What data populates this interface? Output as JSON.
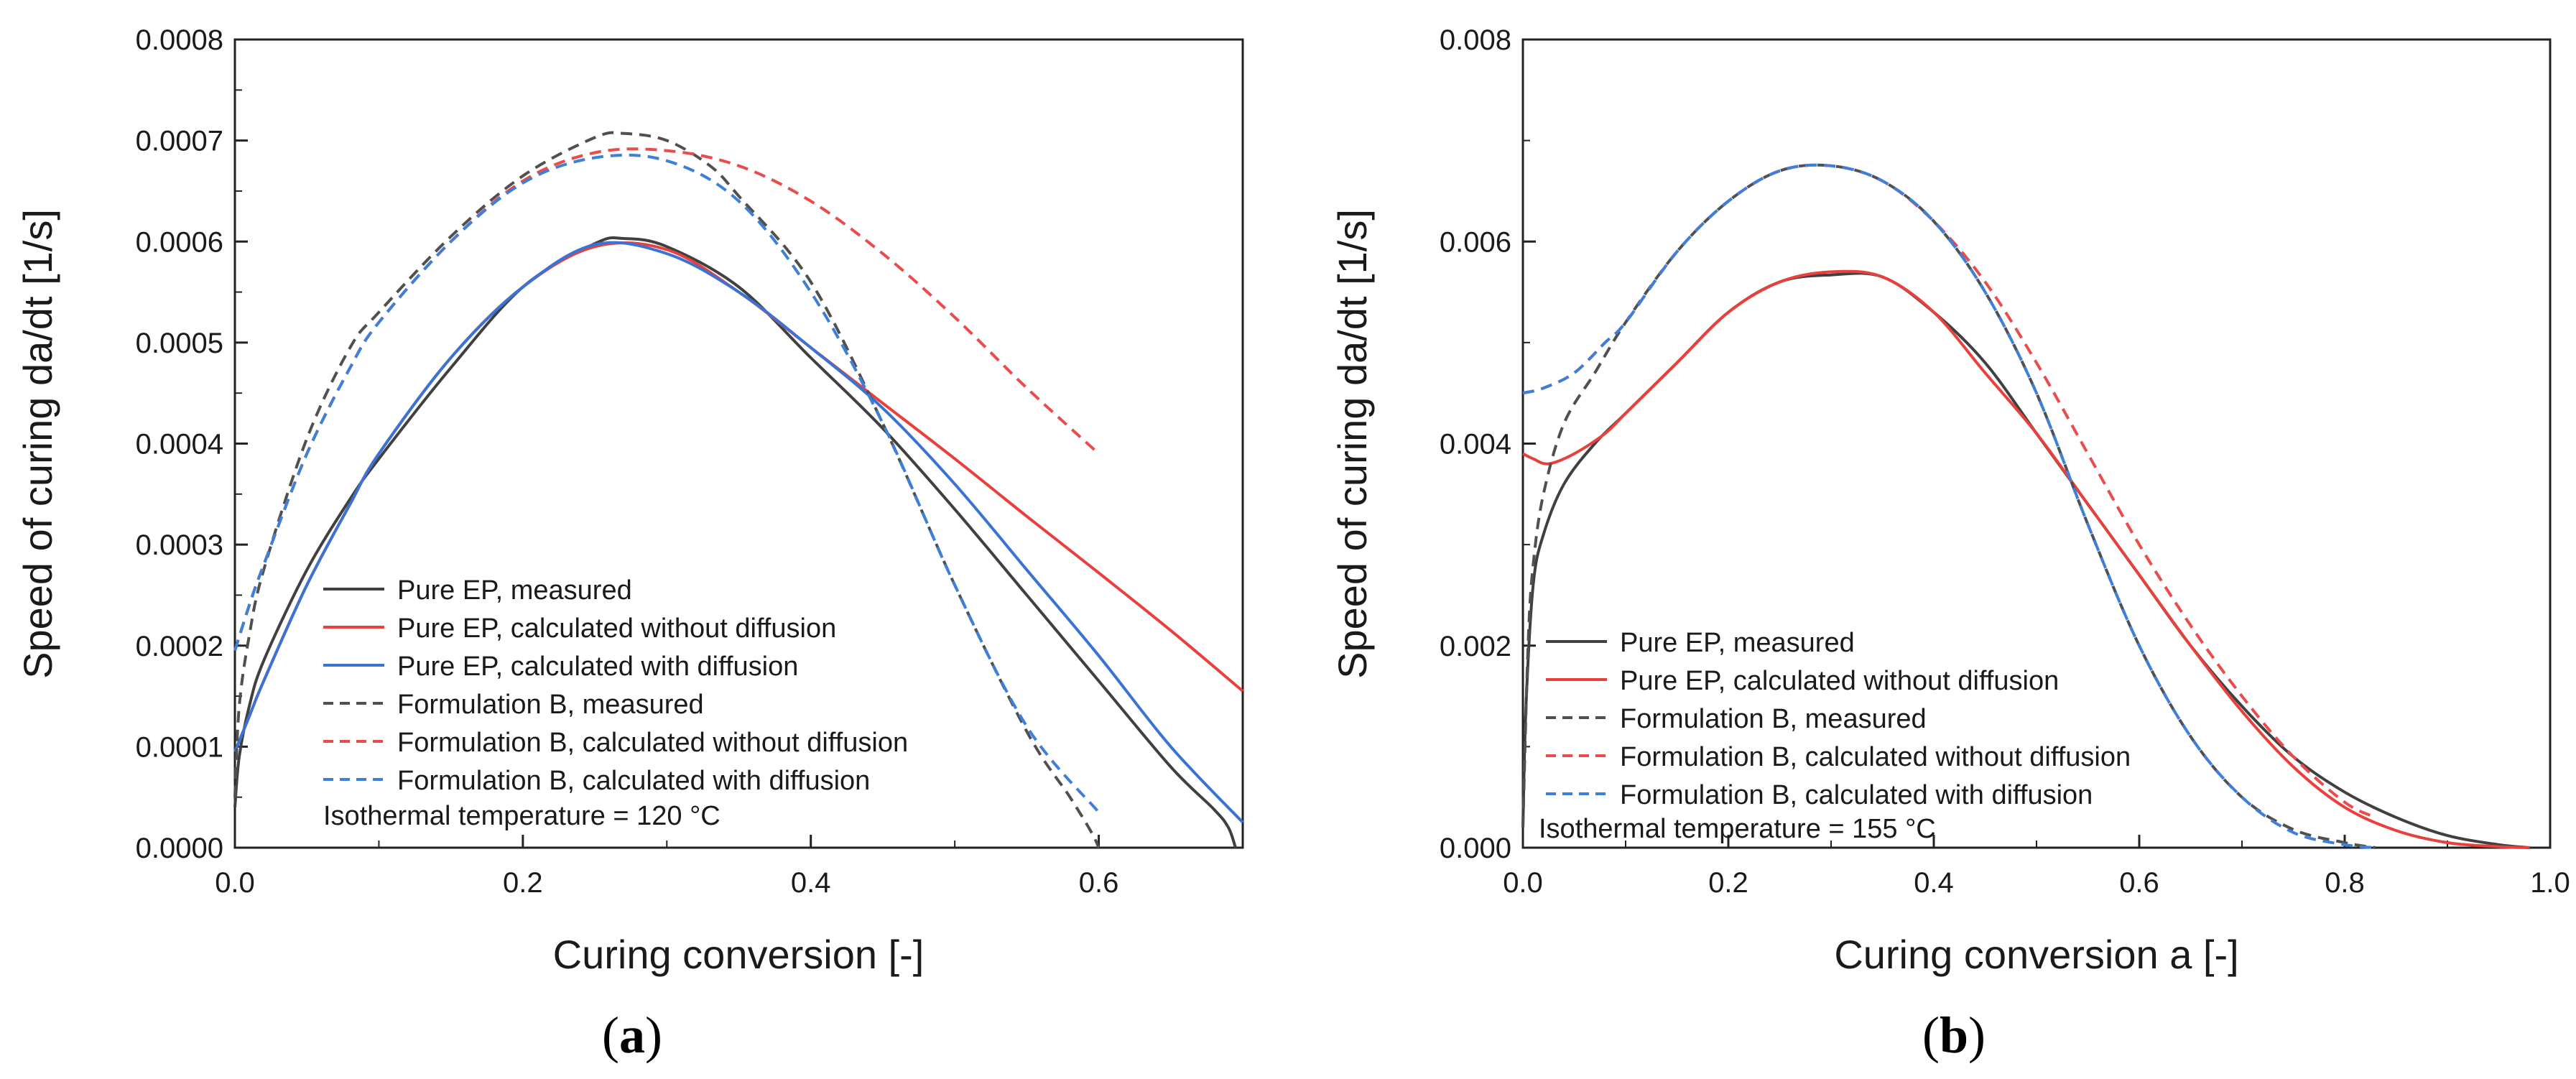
{
  "chart_data": [
    {
      "type": "line",
      "panel_label": "a",
      "xlabel": "Curing conversion [-]",
      "ylabel": "Speed of curing da/dt [1/s]",
      "xlim": [
        0,
        0.7
      ],
      "ylim": [
        0,
        0.0008
      ],
      "xticks": [
        0.0,
        0.2,
        0.4,
        0.6
      ],
      "xtick_labels": [
        "0.0",
        "0.2",
        "0.4",
        "0.6"
      ],
      "yticks": [
        0,
        0.0001,
        0.0002,
        0.0003,
        0.0004,
        0.0005,
        0.0006,
        0.0007,
        0.0008
      ],
      "ytick_labels": [
        "0.0000",
        "0.0001",
        "0.0002",
        "0.0003",
        "0.0004",
        "0.0005",
        "0.0006",
        "0.0007",
        "0.0008"
      ],
      "grid": false,
      "legend_position": "bottom-center",
      "annotation": "Isothermal temperature = 120 °C",
      "series": [
        {
          "name": "Pure EP, measured",
          "color": "#404040",
          "dash": "solid",
          "x": [
            0.0,
            0.003,
            0.01,
            0.02,
            0.05,
            0.08,
            0.1,
            0.15,
            0.2,
            0.25,
            0.27,
            0.3,
            0.35,
            0.4,
            0.45,
            0.5,
            0.55,
            0.6,
            0.65,
            0.68,
            0.69,
            0.695
          ],
          "y": [
            4e-05,
            9e-05,
            0.00014,
            0.000185,
            0.000275,
            0.000345,
            0.000385,
            0.000475,
            0.000555,
            0.000598,
            0.000603,
            0.000595,
            0.000555,
            0.000485,
            0.000415,
            0.000335,
            0.00025,
            0.000165,
            8e-05,
            3.8e-05,
            2e-05,
            0.0
          ]
        },
        {
          "name": "Pure EP, calculated without diffusion",
          "color": "#e8403c",
          "dash": "solid",
          "x": [
            0.0,
            0.01,
            0.02,
            0.05,
            0.08,
            0.1,
            0.15,
            0.2,
            0.25,
            0.3,
            0.35,
            0.4,
            0.45,
            0.5,
            0.55,
            0.6,
            0.65,
            0.7
          ],
          "y": [
            9.5e-05,
            0.00013,
            0.000165,
            0.00026,
            0.00034,
            0.00039,
            0.000485,
            0.000555,
            0.000595,
            0.000592,
            0.00055,
            0.000495,
            0.00044,
            0.000385,
            0.000328,
            0.000272,
            0.000215,
            0.000155
          ]
        },
        {
          "name": "Pure EP, calculated with diffusion",
          "color": "#3a73d4",
          "dash": "solid",
          "x": [
            0.0,
            0.01,
            0.02,
            0.05,
            0.08,
            0.1,
            0.15,
            0.2,
            0.25,
            0.3,
            0.35,
            0.4,
            0.45,
            0.5,
            0.55,
            0.6,
            0.65,
            0.7
          ],
          "y": [
            9.5e-05,
            0.00013,
            0.000165,
            0.00026,
            0.00034,
            0.00039,
            0.000485,
            0.000555,
            0.000597,
            0.000588,
            0.00055,
            0.000495,
            0.000435,
            0.00036,
            0.000275,
            0.00019,
            0.0001,
            2.5e-05
          ]
        },
        {
          "name": "Formulation B, measured",
          "color": "#505050",
          "dash": "dash",
          "x": [
            0.0,
            0.003,
            0.01,
            0.02,
            0.05,
            0.08,
            0.1,
            0.15,
            0.2,
            0.25,
            0.27,
            0.3,
            0.33,
            0.35,
            0.4,
            0.45,
            0.5,
            0.55,
            0.58,
            0.595,
            0.6
          ],
          "y": [
            5e-05,
            0.00014,
            0.00021,
            0.000275,
            0.000405,
            0.000495,
            0.00053,
            0.000605,
            0.000665,
            0.000703,
            0.000707,
            0.0007,
            0.000675,
            0.000645,
            0.00056,
            0.00042,
            0.00026,
            0.000115,
            5e-05,
            1.5e-05,
            0.0
          ]
        },
        {
          "name": "Formulation B, calculated without diffusion",
          "color": "#ea4b4b",
          "dash": "dash",
          "x": [
            0.0,
            0.01,
            0.02,
            0.05,
            0.08,
            0.1,
            0.15,
            0.2,
            0.25,
            0.3,
            0.35,
            0.4,
            0.45,
            0.5,
            0.55,
            0.6
          ],
          "y": [
            0.000195,
            0.00024,
            0.00028,
            0.00039,
            0.000475,
            0.00052,
            0.0006,
            0.00066,
            0.000688,
            0.00069,
            0.000675,
            0.00064,
            0.000588,
            0.000525,
            0.000455,
            0.00039
          ]
        },
        {
          "name": "Formulation B, calculated with diffusion",
          "color": "#3d7fd9",
          "dash": "dash",
          "x": [
            0.0,
            0.01,
            0.02,
            0.05,
            0.08,
            0.1,
            0.15,
            0.2,
            0.25,
            0.3,
            0.35,
            0.4,
            0.45,
            0.5,
            0.55,
            0.6
          ],
          "y": [
            0.000195,
            0.00024,
            0.00028,
            0.00039,
            0.000475,
            0.00052,
            0.0006,
            0.000658,
            0.000683,
            0.00068,
            0.00064,
            0.00055,
            0.00042,
            0.00026,
            0.00012,
            3.5e-05
          ]
        }
      ]
    },
    {
      "type": "line",
      "panel_label": "b",
      "xlabel": "Curing conversion a [-]",
      "ylabel": "Speed of curing da/dt [1/s]",
      "xlim": [
        0,
        1.0
      ],
      "ylim": [
        0,
        0.008
      ],
      "xticks": [
        0.0,
        0.2,
        0.4,
        0.6,
        0.8,
        1.0
      ],
      "xtick_labels": [
        "0.0",
        "0.2",
        "0.4",
        "0.6",
        "0.8",
        "1.0"
      ],
      "yticks": [
        0,
        0.002,
        0.004,
        0.006,
        0.008
      ],
      "ytick_labels": [
        "0.000",
        "0.002",
        "0.004",
        "0.006",
        "0.008"
      ],
      "grid": false,
      "legend_position": "bottom-center",
      "annotation": "Isothermal temperature = 155 °C",
      "series": [
        {
          "name": "Pure EP, measured",
          "color": "#404040",
          "dash": "solid",
          "x": [
            0.0,
            0.003,
            0.01,
            0.02,
            0.04,
            0.07,
            0.1,
            0.15,
            0.2,
            0.25,
            0.3,
            0.35,
            0.4,
            0.45,
            0.5,
            0.55,
            0.6,
            0.65,
            0.7,
            0.75,
            0.8,
            0.85,
            0.9,
            0.95,
            0.98
          ],
          "y": [
            0.0002,
            0.0014,
            0.0026,
            0.0031,
            0.0036,
            0.004,
            0.0043,
            0.0048,
            0.0053,
            0.0056,
            0.00567,
            0.00565,
            0.0053,
            0.0048,
            0.0041,
            0.0034,
            0.0027,
            0.002,
            0.0014,
            0.0009,
            0.00055,
            0.0003,
            0.00012,
            3e-05,
            0.0
          ]
        },
        {
          "name": "Pure EP, calculated without diffusion",
          "color": "#e8403c",
          "dash": "solid",
          "x": [
            0.0,
            0.01,
            0.025,
            0.05,
            0.08,
            0.1,
            0.15,
            0.2,
            0.25,
            0.3,
            0.35,
            0.4,
            0.45,
            0.5,
            0.55,
            0.6,
            0.65,
            0.7,
            0.75,
            0.8,
            0.85,
            0.9,
            0.95,
            0.98
          ],
          "y": [
            0.0039,
            0.00385,
            0.0038,
            0.0039,
            0.0041,
            0.0043,
            0.0048,
            0.0053,
            0.0056,
            0.0057,
            0.00565,
            0.0053,
            0.0047,
            0.0041,
            0.0034,
            0.0027,
            0.002,
            0.00135,
            0.0008,
            0.0004,
            0.00017,
            5e-05,
            1e-05,
            0.0
          ]
        },
        {
          "name": "Formulation B, measured",
          "color": "#505050",
          "dash": "dash",
          "x": [
            0.0,
            0.005,
            0.01,
            0.02,
            0.04,
            0.07,
            0.1,
            0.15,
            0.2,
            0.25,
            0.3,
            0.35,
            0.4,
            0.45,
            0.5,
            0.55,
            0.6,
            0.65,
            0.7,
            0.75,
            0.8,
            0.83
          ],
          "y": [
            0.0002,
            0.002,
            0.0028,
            0.0035,
            0.0042,
            0.0047,
            0.0052,
            0.0059,
            0.0064,
            0.0067,
            0.00675,
            0.0066,
            0.0062,
            0.0055,
            0.0045,
            0.0032,
            0.002,
            0.0011,
            0.0005,
            0.00018,
            5e-05,
            0.0
          ]
        },
        {
          "name": "Formulation B, calculated without diffusion",
          "color": "#ea4b4b",
          "dash": "dash",
          "x": [
            0.0,
            0.02,
            0.05,
            0.08,
            0.1,
            0.15,
            0.2,
            0.25,
            0.3,
            0.35,
            0.4,
            0.45,
            0.5,
            0.55,
            0.6,
            0.65,
            0.7,
            0.75,
            0.8,
            0.83
          ],
          "y": [
            0.0045,
            0.00455,
            0.0047,
            0.005,
            0.0052,
            0.0059,
            0.0064,
            0.0067,
            0.00675,
            0.0066,
            0.0062,
            0.0056,
            0.0048,
            0.0039,
            0.003,
            0.0022,
            0.0015,
            0.0009,
            0.00045,
            0.0003
          ]
        },
        {
          "name": "Formulation B, calculated with diffusion",
          "color": "#3d7fd9",
          "dash": "dash",
          "x": [
            0.0,
            0.02,
            0.05,
            0.08,
            0.1,
            0.15,
            0.2,
            0.25,
            0.3,
            0.35,
            0.4,
            0.45,
            0.5,
            0.55,
            0.6,
            0.65,
            0.7,
            0.75,
            0.8,
            0.83
          ],
          "y": [
            0.0045,
            0.00455,
            0.0047,
            0.005,
            0.0052,
            0.0059,
            0.0064,
            0.0067,
            0.00675,
            0.0066,
            0.0062,
            0.0055,
            0.0045,
            0.0032,
            0.002,
            0.0011,
            0.0005,
            0.00015,
            3e-05,
            0.0
          ]
        }
      ]
    }
  ]
}
